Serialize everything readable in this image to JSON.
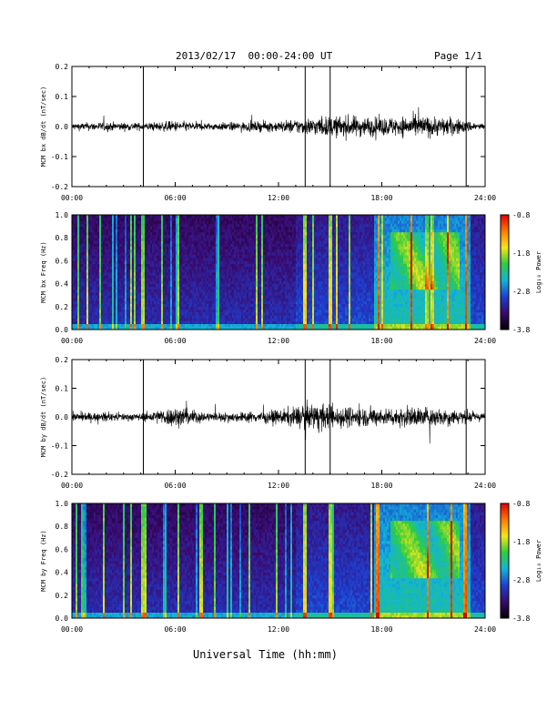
{
  "header": {
    "title": "2013/02/17  00:00-24:00 UT",
    "page": "Page 1/1"
  },
  "footer": {
    "xlabel": "Universal Time (hh:mm)"
  },
  "colors": {
    "spectrogram_scale": [
      "#000000",
      "#3a0a6e",
      "#1e3fd0",
      "#12b4d8",
      "#2ecc40",
      "#f5e61a",
      "#ff7a00",
      "#e00000"
    ],
    "trace": "#000000"
  },
  "chart_data": [
    {
      "type": "line",
      "ylabel": "MCM bx dB/dt (nT/sec)",
      "xlim_hours": [
        0,
        24
      ],
      "x_ticks": [
        "00:00",
        "06:00",
        "12:00",
        "18:00",
        "24:00"
      ],
      "ylim": [
        -0.2,
        0.2
      ],
      "y_ticks": [
        "-0.2",
        "-0.1",
        "0.0",
        "0.1",
        "0.2"
      ],
      "series": [
        {
          "x_hours": [
            0,
            2,
            4,
            6,
            8,
            10,
            12,
            14,
            16,
            18,
            20,
            22,
            24
          ],
          "envelope_amplitude": [
            0.02,
            0.025,
            0.02,
            0.03,
            0.02,
            0.025,
            0.03,
            0.05,
            0.06,
            0.05,
            0.06,
            0.05,
            0.015
          ]
        }
      ],
      "spikes": [
        {
          "t_hours": 4.15,
          "amplitude": 0.2
        },
        {
          "t_hours": 13.55,
          "amplitude": 0.2
        },
        {
          "t_hours": 15.0,
          "amplitude": 0.2
        },
        {
          "t_hours": 22.9,
          "amplitude": 0.2
        }
      ]
    },
    {
      "type": "heatmap",
      "ylabel": "MCM bx Freq (Hz)",
      "xlim_hours": [
        0,
        24
      ],
      "x_ticks": [
        "00:00",
        "06:00",
        "12:00",
        "18:00",
        "24:00"
      ],
      "ylim": [
        0,
        1.0
      ],
      "y_ticks": [
        "0.0",
        "0.2",
        "0.4",
        "0.6",
        "0.8",
        "1.0"
      ],
      "colorbar": {
        "label": "Log₁₀ Power",
        "range": [
          -3.8,
          -0.8
        ],
        "ticks": [
          "-0.8",
          "-1.8",
          "-2.8",
          "-3.8"
        ]
      },
      "event_times_hours": [
        3.45,
        4.15,
        6.2,
        13.55,
        15.0,
        17.8,
        22.9
      ]
    },
    {
      "type": "line",
      "ylabel": "MCM by dB/dt (nT/sec)",
      "xlim_hours": [
        0,
        24
      ],
      "x_ticks": [
        "00:00",
        "06:00",
        "12:00",
        "18:00",
        "24:00"
      ],
      "ylim": [
        -0.2,
        0.2
      ],
      "y_ticks": [
        "-0.2",
        "-0.1",
        "0.0",
        "0.1",
        "0.2"
      ],
      "series": [
        {
          "x_hours": [
            0,
            2,
            4,
            6,
            8,
            10,
            12,
            14,
            16,
            18,
            20,
            22,
            24
          ],
          "envelope_amplitude": [
            0.025,
            0.025,
            0.02,
            0.06,
            0.025,
            0.03,
            0.04,
            0.08,
            0.06,
            0.05,
            0.06,
            0.05,
            0.02
          ]
        }
      ],
      "spikes": [
        {
          "t_hours": 4.15,
          "amplitude": 0.2
        },
        {
          "t_hours": 13.55,
          "amplitude": 0.2
        },
        {
          "t_hours": 15.0,
          "amplitude": 0.2
        },
        {
          "t_hours": 22.9,
          "amplitude": 0.2
        }
      ]
    },
    {
      "type": "heatmap",
      "ylabel": "MCM by Freq (Hz)",
      "xlim_hours": [
        0,
        24
      ],
      "x_ticks": [
        "00:00",
        "06:00",
        "12:00",
        "18:00",
        "24:00"
      ],
      "ylim": [
        0,
        1.0
      ],
      "y_ticks": [
        "0.0",
        "0.2",
        "0.4",
        "0.6",
        "0.8",
        "1.0"
      ],
      "colorbar": {
        "label": "Log₁₀ Power",
        "range": [
          -3.8,
          -0.8
        ],
        "ticks": [
          "-0.8",
          "-1.8",
          "-2.8",
          "-3.8"
        ]
      },
      "event_times_hours": [
        3.45,
        4.15,
        6.2,
        13.55,
        15.0,
        17.8,
        22.9
      ]
    }
  ]
}
